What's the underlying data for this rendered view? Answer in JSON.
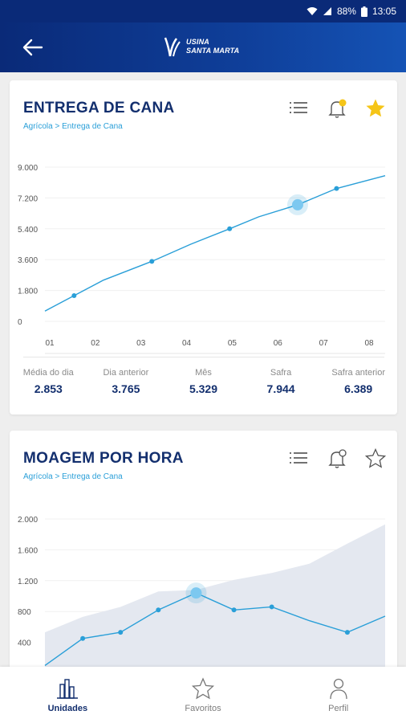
{
  "status_bar": {
    "battery": "88%",
    "time": "13:05"
  },
  "app_bar": {
    "logo_line1": "USINA",
    "logo_line2": "SANTA MARTA"
  },
  "cards": [
    {
      "title": "ENTREGA DE CANA",
      "breadcrumb": "Agrícola > Entrega de Cana",
      "favorite": true,
      "chart_data": {
        "type": "line",
        "y_ticks": [
          "9.000",
          "7.200",
          "5.400",
          "3.600",
          "1.800",
          "0"
        ],
        "ylim": [
          0,
          9000
        ],
        "x_ticks": [
          "01",
          "02",
          "03",
          "04",
          "05",
          "06",
          "07",
          "08"
        ],
        "x": [
          0.0,
          0.6,
          1.2,
          2.2,
          3.0,
          3.8,
          4.4,
          5.2,
          6.0,
          7.0
        ],
        "values": [
          600,
          1500,
          2400,
          3500,
          4500,
          5400,
          6100,
          6800,
          7750,
          8500
        ],
        "markers": [
          1,
          3,
          5,
          8
        ],
        "highlight": 7,
        "line_color": "#2a9fd8"
      },
      "stats": [
        {
          "label": "Média do dia",
          "value": "2.853"
        },
        {
          "label": "Dia anterior",
          "value": "3.765"
        },
        {
          "label": "Mês",
          "value": "5.329"
        },
        {
          "label": "Safra",
          "value": "7.944"
        },
        {
          "label": "Safra anterior",
          "value": "6.389"
        }
      ]
    },
    {
      "title": "MOAGEM POR HORA",
      "breadcrumb": "Agrícola > Entrega de Cana",
      "favorite": false,
      "chart_data": {
        "type": "line+area",
        "y_ticks": [
          "2.000",
          "1.600",
          "1.200",
          "800",
          "400"
        ],
        "ylim": [
          0,
          2000
        ],
        "x": [
          0,
          1,
          2,
          3,
          4,
          5,
          6,
          7,
          8,
          9
        ],
        "area_values": [
          530,
          730,
          860,
          1060,
          1080,
          1210,
          1300,
          1420,
          1680,
          1930
        ],
        "values": [
          100,
          450,
          530,
          820,
          1040,
          820,
          860,
          680,
          530,
          740
        ],
        "markers": [
          1,
          2,
          3,
          5,
          6,
          8
        ],
        "highlight": 4,
        "line_color": "#2a9fd8",
        "area_color": "#e4e8f0"
      }
    }
  ],
  "bottom_nav": [
    {
      "label": "Unidades",
      "icon": "buildings-icon",
      "active": true
    },
    {
      "label": "Favoritos",
      "icon": "star-outline-icon",
      "active": false
    },
    {
      "label": "Perfil",
      "icon": "person-icon",
      "active": false
    }
  ]
}
